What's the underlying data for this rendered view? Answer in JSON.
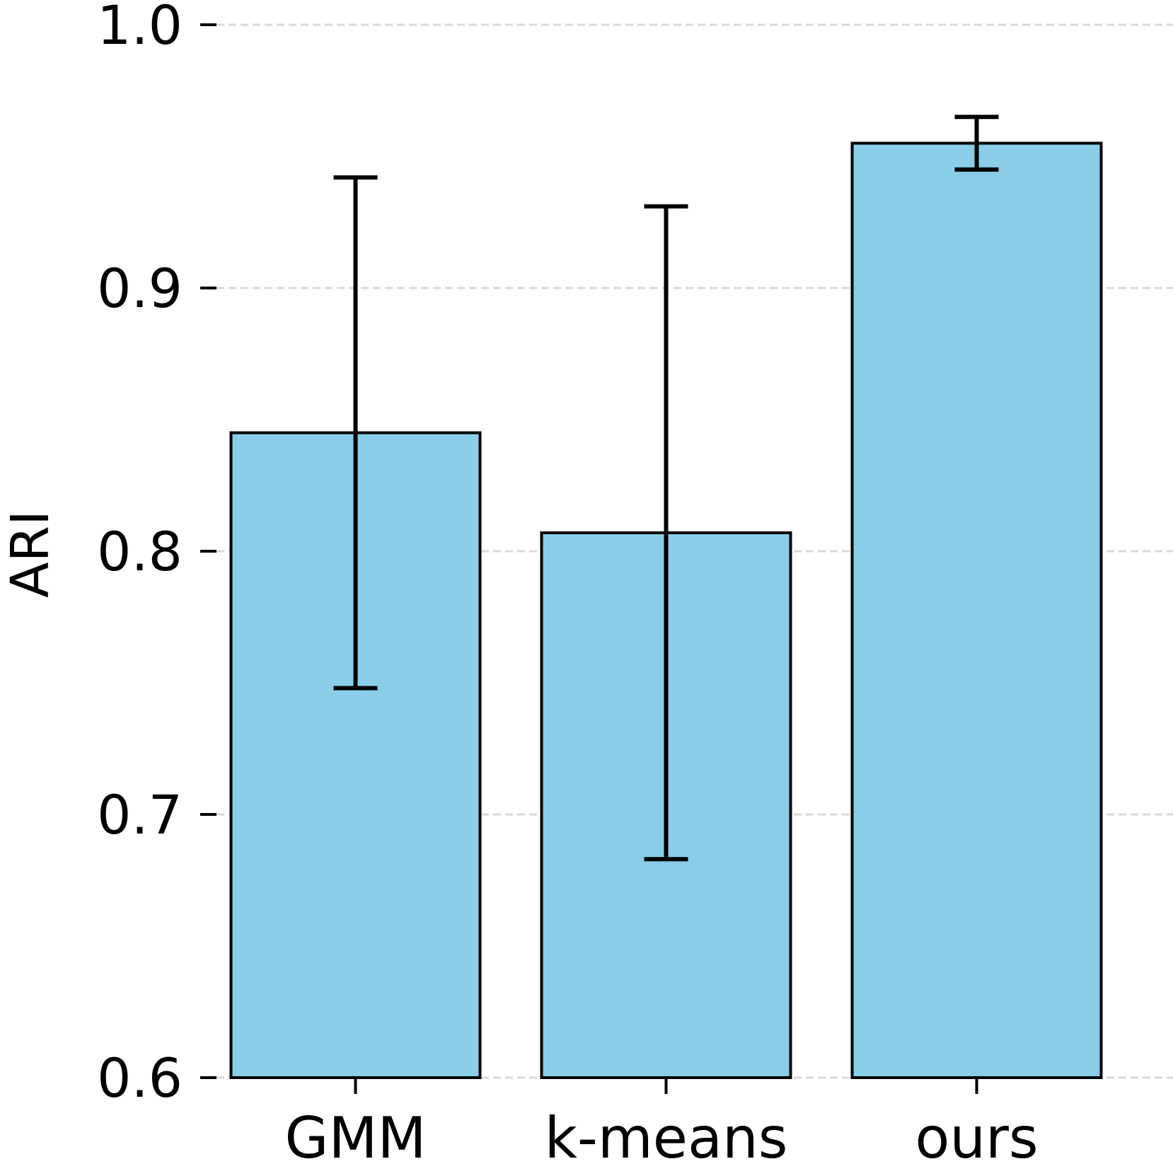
{
  "chart_data": {
    "type": "bar",
    "title": "",
    "xlabel": "",
    "ylabel": "ARI",
    "categories": [
      "GMM",
      "k-means",
      "ours"
    ],
    "values": [
      0.845,
      0.807,
      0.955
    ],
    "errors": [
      0.097,
      0.124,
      0.01
    ],
    "ylim": [
      0.6,
      1.0
    ],
    "yticks": [
      0.6,
      0.7,
      0.8,
      0.9,
      1.0
    ],
    "ytick_labels": [
      "0.6",
      "0.7",
      "0.8",
      "0.9",
      "1.0"
    ],
    "grid": "horizontal-dashed",
    "bar_color": "#89CDE8",
    "edge_color": "#000000",
    "grid_color": "#D9D9D9"
  }
}
